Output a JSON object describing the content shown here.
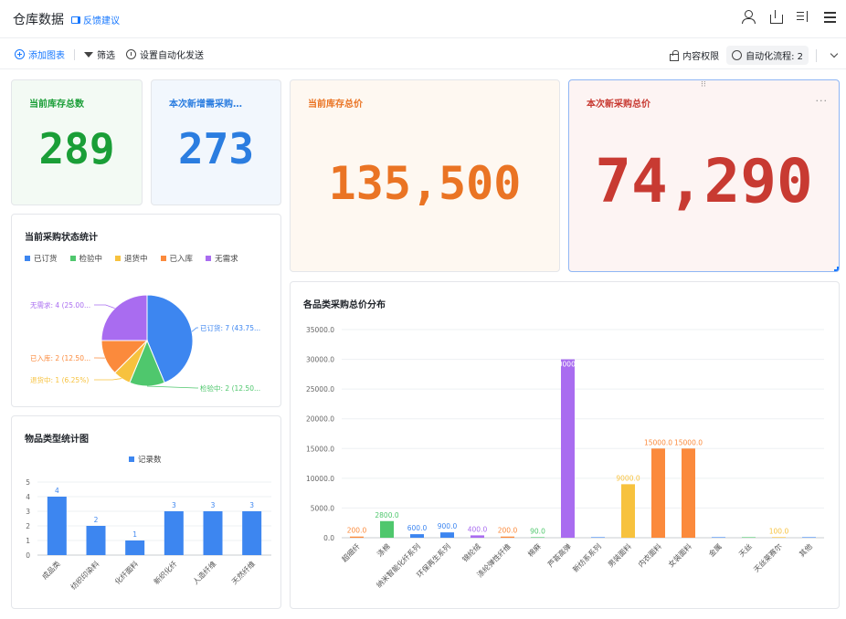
{
  "header": {
    "title": "仓库数据",
    "feedback_label": "反馈建议"
  },
  "toolbar": {
    "add_chart": "添加图表",
    "filter": "筛选",
    "auto_send": "设置自动化发送",
    "content_permission": "内容权限",
    "auto_flow": "自动化流程: 2"
  },
  "kpis": {
    "inventory_count": {
      "label": "当前库存总数",
      "value": "289",
      "color": "#1a9e37"
    },
    "purchase_need_count": {
      "label": "本次新增需采购…",
      "value": "273",
      "color": "#2b7de0"
    },
    "inventory_total_price": {
      "label": "当前库存总价",
      "value": "135,500",
      "color": "#ea7424"
    },
    "purchase_total_price": {
      "label": "本次新采购总价",
      "value": "74,290",
      "color": "#c83a32"
    }
  },
  "status_chart": {
    "title": "当前采购状态统计",
    "chart_data": {
      "type": "pie",
      "categories": [
        "已订货",
        "检验中",
        "退货中",
        "已入库",
        "无需求"
      ],
      "values": [
        7,
        2,
        1,
        2,
        4
      ],
      "colors": [
        "#3d86f0",
        "#4fc76d",
        "#f7c23e",
        "#fb8a3c",
        "#a96cf0"
      ],
      "labels": [
        "已订货: 7 (43.75...",
        "检验中: 2 (12.50...",
        "退货中: 1 (6.25%)",
        "已入库: 2 (12.50...",
        "无需求: 4 (25.00..."
      ],
      "legend_position": "top-left"
    }
  },
  "type_chart": {
    "title": "物品类型统计图",
    "chart_data": {
      "type": "bar",
      "categories": [
        "成品类",
        "纺织印染料",
        "化纤面料",
        "新织化纤",
        "人造纤维",
        "天然纤维"
      ],
      "series": [
        {
          "name": "记录数",
          "values": [
            4,
            2,
            1,
            3,
            3,
            3
          ]
        }
      ],
      "ylim": [
        0,
        5
      ],
      "yticks": [
        "0",
        "1",
        "2",
        "3",
        "4",
        "5"
      ],
      "legend_position": "top-center",
      "color": "#3d86f0"
    }
  },
  "category_chart": {
    "title": "各品类采购总价分布",
    "chart_data": {
      "type": "bar",
      "categories": [
        "超细纤",
        "涤棉",
        "纳米智能化纤系列",
        "环保再生系列",
        "锦纶绒",
        "涤纶弹性纤维",
        "棉麻",
        "芦荟高弹",
        "新纺系系列",
        "男装面料",
        "内衣面料",
        "女装面料",
        "金属",
        "天丝",
        "天丝莱赛尔",
        "其他"
      ],
      "values": [
        200,
        2800,
        600,
        900,
        400,
        200,
        90,
        30000,
        0,
        9000,
        15000,
        15000,
        0,
        0,
        100,
        0
      ],
      "value_labels": [
        "200.0",
        "2800.0",
        "600.0",
        "900.0",
        "400.0",
        "200.0",
        "90.0",
        "30000.0",
        "",
        "9000.0",
        "15000.0",
        "15000.0",
        "",
        "",
        "100.0",
        ""
      ],
      "colors": [
        "#fb8a3c",
        "#4fc76d",
        "#3d86f0",
        "#3d86f0",
        "#a96cf0",
        "#fb8a3c",
        "#4fc76d",
        "#a96cf0",
        "#3d86f0",
        "#f7c23e",
        "#fb8a3c",
        "#fb8a3c",
        "#3d86f0",
        "#4fc76d",
        "#f7c23e",
        "#3d86f0"
      ],
      "ylim": [
        0,
        35000
      ],
      "yticks": [
        "0.0",
        "5000.0",
        "10000.0",
        "15000.0",
        "20000.0",
        "25000.0",
        "30000.0",
        "35000.0"
      ],
      "grid": true
    }
  }
}
